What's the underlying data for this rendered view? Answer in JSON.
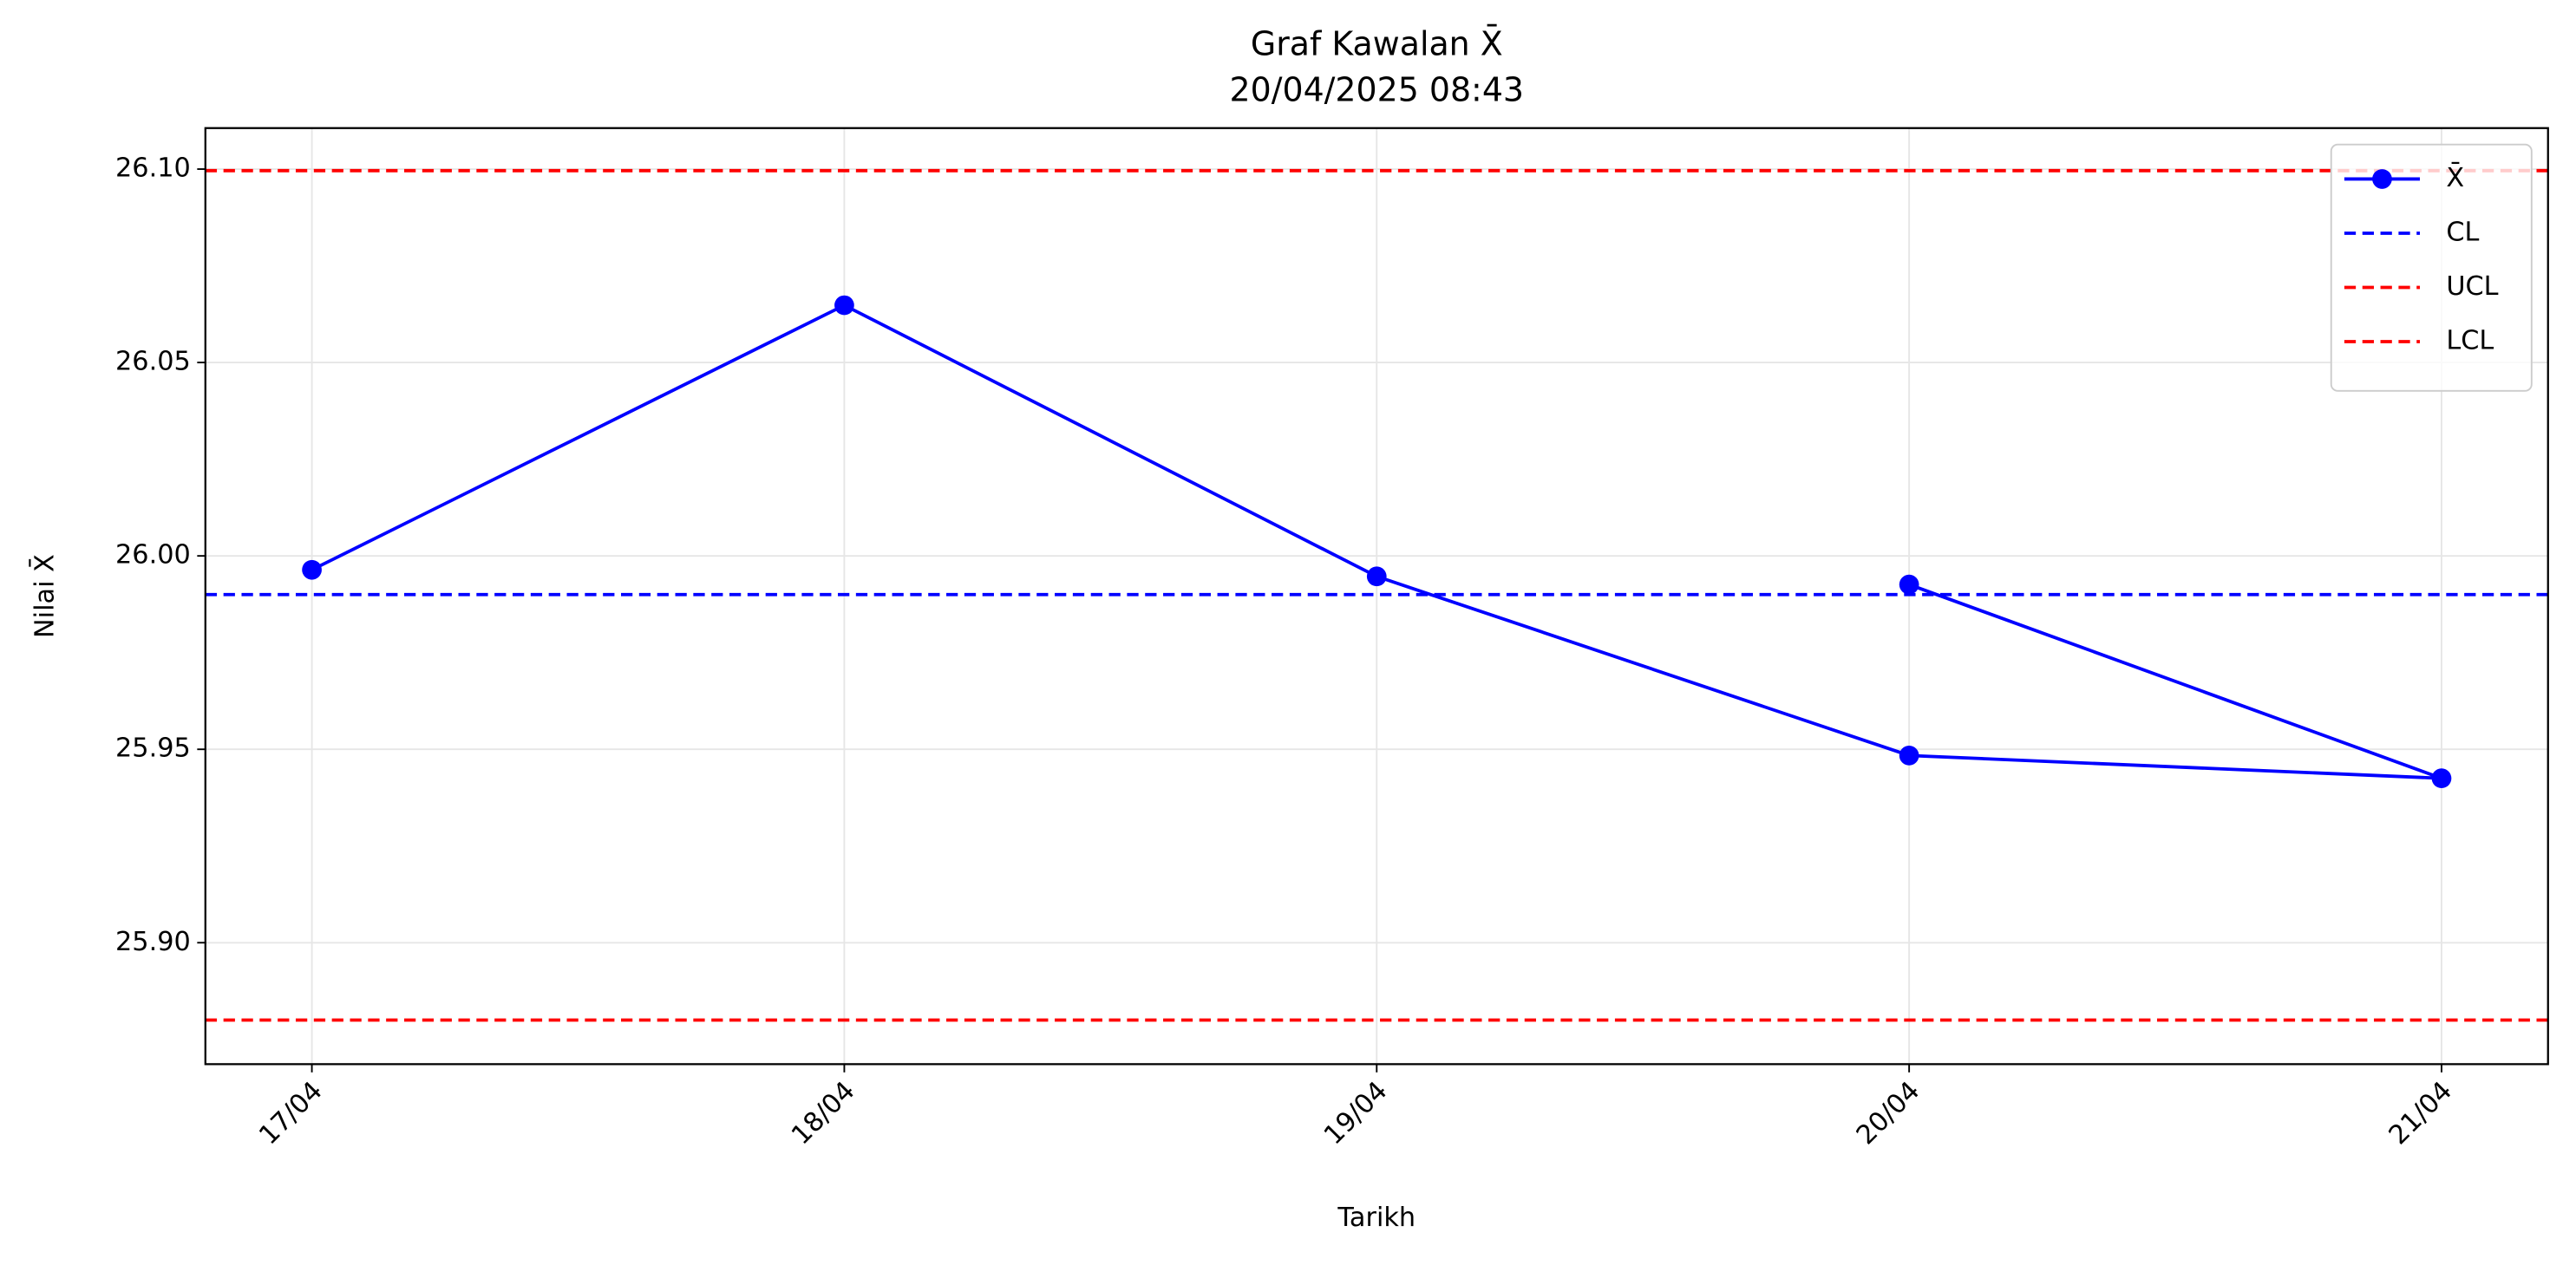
{
  "chart_data": {
    "type": "line",
    "title": "Graf Kawalan X̄",
    "subtitle": "20/04/2025 08:43",
    "x_label": "Tarikh",
    "y_label": "Nilai X̄",
    "x": [
      "17/04",
      "18/04",
      "19/04",
      "20/04",
      "21/04",
      "20/04"
    ],
    "xticks": [
      "17/04",
      "18/04",
      "19/04",
      "20/04",
      "21/04"
    ],
    "series": [
      {
        "name": "X̄",
        "color": "#0000ff",
        "values": [
          25.9964,
          26.0648,
          25.9947,
          25.9484,
          25.9425,
          25.9926
        ]
      }
    ],
    "hlines": [
      {
        "name": "CL",
        "color": "#0000ff",
        "value": 25.99
      },
      {
        "name": "UCL",
        "color": "#ff0000",
        "value": 26.0996
      },
      {
        "name": "LCL",
        "color": "#ff0000",
        "value": 25.88
      }
    ],
    "ylim": [
      25.8686,
      26.1106
    ],
    "yticks": [
      {
        "value": 25.9,
        "label": "25.90"
      },
      {
        "value": 25.95,
        "label": "25.95"
      },
      {
        "value": 26.0,
        "label": "26.00"
      },
      {
        "value": 26.05,
        "label": "26.05"
      },
      {
        "value": 26.1,
        "label": "26.10"
      }
    ],
    "grid": true,
    "legend": "upper right"
  }
}
